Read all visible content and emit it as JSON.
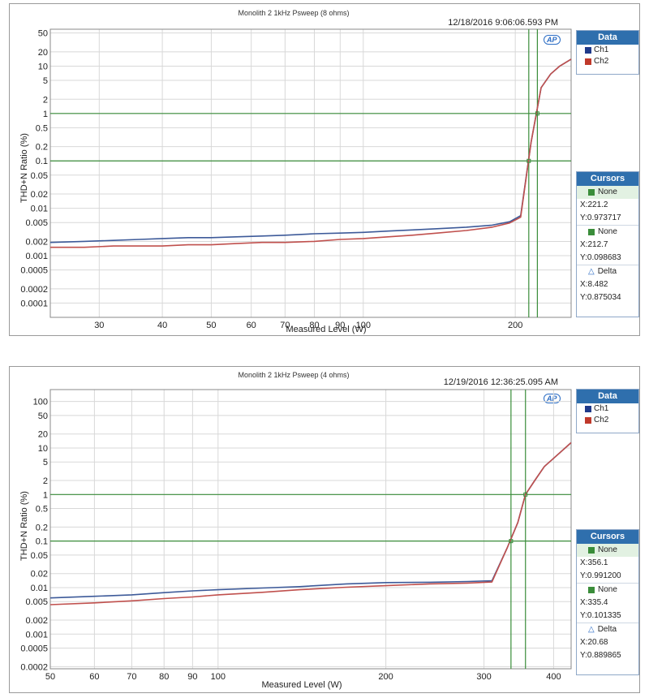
{
  "colors": {
    "ch1": "#3d5a99",
    "ch2": "#c0504d",
    "cursor": "#3a8d3a",
    "grid": "#d8d8d8",
    "header": "#2f6fad"
  },
  "chart_data": [
    {
      "type": "line",
      "title": "Monolith 2 1kHz Psweep (8 ohms)",
      "timestamp": "12/18/2016 9:06:06.593 PM",
      "xlabel": "Measured Level (W)",
      "ylabel": "THD+N Ratio (%)",
      "xscale": "log",
      "yscale": "log",
      "xlim": [
        24,
        258
      ],
      "ylim": [
        5e-05,
        60
      ],
      "x_ticks": [
        30,
        40,
        50,
        60,
        70,
        80,
        90,
        100,
        200
      ],
      "y_ticks": [
        50,
        20,
        10,
        5,
        2,
        1,
        0.5,
        0.2,
        0.1,
        0.05,
        0.02,
        0.01,
        0.005,
        0.002,
        0.001,
        0.0005,
        0.0002,
        0.0001
      ],
      "y_tick_labels": [
        "50",
        "20",
        "10",
        "5",
        "2",
        "1",
        "0.5",
        "0.2",
        "0.1",
        "0.05",
        "0.02",
        "0.01",
        "0.005",
        "0.002",
        "0.001",
        "0.0005",
        "0.0002",
        "0.0001"
      ],
      "gridlines": [
        1,
        0.1
      ],
      "cursors_x": [
        212.7,
        221.2
      ],
      "series": [
        {
          "name": "Ch1",
          "x": [
            24,
            28,
            32,
            36,
            40,
            45,
            50,
            56,
            63,
            70,
            80,
            90,
            100,
            112,
            125,
            140,
            160,
            180,
            195,
            205,
            215,
            225,
            235,
            245,
            258
          ],
          "y": [
            0.0019,
            0.002,
            0.0021,
            0.0022,
            0.0023,
            0.0024,
            0.0024,
            0.0025,
            0.0026,
            0.0027,
            0.0029,
            0.003,
            0.0031,
            0.0033,
            0.0035,
            0.0037,
            0.004,
            0.0044,
            0.0052,
            0.007,
            0.25,
            3.5,
            6.8,
            10,
            14
          ]
        },
        {
          "name": "Ch2",
          "x": [
            24,
            28,
            32,
            36,
            40,
            45,
            50,
            56,
            63,
            70,
            80,
            90,
            100,
            112,
            125,
            140,
            160,
            180,
            195,
            205,
            215,
            225,
            235,
            245,
            258
          ],
          "y": [
            0.0015,
            0.0015,
            0.0016,
            0.0016,
            0.0016,
            0.0017,
            0.0017,
            0.0018,
            0.0019,
            0.0019,
            0.002,
            0.0022,
            0.0023,
            0.0025,
            0.0027,
            0.003,
            0.0034,
            0.004,
            0.0049,
            0.0065,
            0.25,
            3.5,
            6.8,
            10,
            14
          ]
        }
      ],
      "legend": {
        "title": "Data",
        "items": [
          "Ch1",
          "Ch2"
        ]
      },
      "cursors": {
        "title": "Cursors",
        "c1_name": "None",
        "c1_x": "X:221.2",
        "c1_y": "Y:0.973717",
        "c2_name": "None",
        "c2_x": "X:212.7",
        "c2_y": "Y:0.098683",
        "delta_name": "Delta",
        "delta_x": "X:8.482",
        "delta_y": "Y:0.875034"
      }
    },
    {
      "type": "line",
      "title": "Monolith 2 1kHz Psweep (4 ohms)",
      "timestamp": "12/19/2016 12:36:25.095 AM",
      "xlabel": "Measured Level (W)",
      "ylabel": "THD+N Ratio (%)",
      "xscale": "log",
      "yscale": "log",
      "xlim": [
        50,
        430
      ],
      "ylim": [
        0.00018,
        180
      ],
      "x_ticks": [
        50,
        60,
        70,
        80,
        90,
        100,
        200,
        300,
        400
      ],
      "y_ticks": [
        100,
        50,
        20,
        10,
        5,
        2,
        1,
        0.5,
        0.2,
        0.1,
        0.05,
        0.02,
        0.01,
        0.005,
        0.002,
        0.001,
        0.0005,
        0.0002
      ],
      "y_tick_labels": [
        "100",
        "50",
        "20",
        "10",
        "5",
        "2",
        "1",
        "0.5",
        "0.2",
        "0.1",
        "0.05",
        "0.02",
        "0.01",
        "0.005",
        "0.002",
        "0.001",
        "0.0005",
        "0.0002"
      ],
      "gridlines": [
        1,
        0.1
      ],
      "cursors_x": [
        335.4,
        356.1
      ],
      "series": [
        {
          "name": "Ch1",
          "x": [
            50,
            60,
            70,
            80,
            90,
            100,
            120,
            140,
            170,
            200,
            240,
            280,
            310,
            330,
            345,
            356,
            370,
            385,
            400,
            430
          ],
          "y": [
            0.006,
            0.0065,
            0.007,
            0.0078,
            0.0085,
            0.009,
            0.0098,
            0.0105,
            0.012,
            0.0128,
            0.013,
            0.0135,
            0.014,
            0.07,
            0.25,
            1.0,
            2.0,
            4.0,
            6.0,
            13
          ]
        },
        {
          "name": "Ch2",
          "x": [
            50,
            60,
            70,
            80,
            90,
            100,
            120,
            140,
            170,
            200,
            240,
            280,
            310,
            330,
            345,
            356,
            370,
            385,
            400,
            430
          ],
          "y": [
            0.0043,
            0.0047,
            0.0052,
            0.0058,
            0.0063,
            0.007,
            0.0079,
            0.009,
            0.0102,
            0.011,
            0.012,
            0.0125,
            0.0132,
            0.07,
            0.25,
            1.0,
            2.0,
            4.0,
            6.0,
            13
          ]
        }
      ],
      "legend": {
        "title": "Data",
        "items": [
          "Ch1",
          "Ch2"
        ]
      },
      "cursors": {
        "title": "Cursors",
        "c1_name": "None",
        "c1_x": "X:356.1",
        "c1_y": "Y:0.991200",
        "c2_name": "None",
        "c2_x": "X:335.4",
        "c2_y": "Y:0.101335",
        "delta_name": "Delta",
        "delta_x": "X:20.68",
        "delta_y": "Y:0.889865"
      }
    }
  ]
}
